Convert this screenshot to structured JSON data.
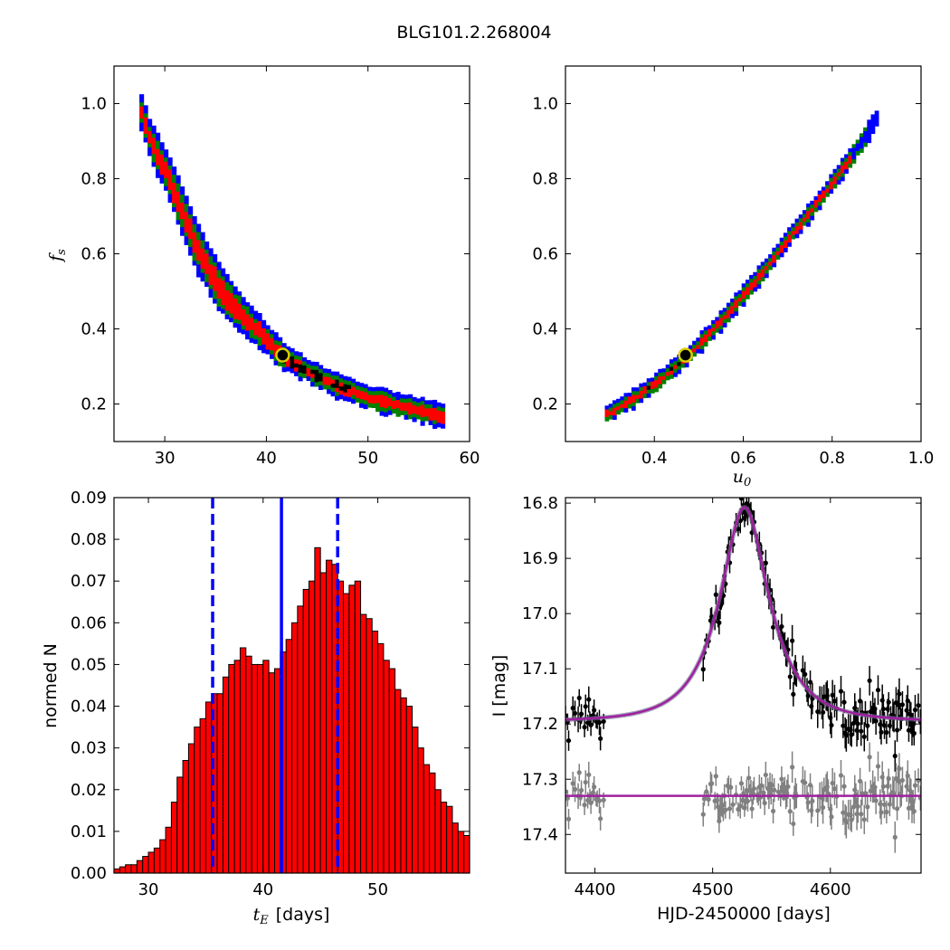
{
  "title": "BLG101.2.268004",
  "chart_data": [
    {
      "id": "te_fs",
      "type": "heatmap",
      "xlabel": "",
      "ylabel_base": "f",
      "ylabel_sub": "s",
      "xlim": [
        25,
        60
      ],
      "ylim": [
        0.1,
        1.1
      ],
      "xticks": [
        "30",
        "40",
        "50",
        "60"
      ],
      "yticks": [
        "0.2",
        "0.4",
        "0.6",
        "0.8",
        "1.0"
      ],
      "confidence_levels": [
        {
          "name": "3-sigma",
          "color": "#0000ff"
        },
        {
          "name": "2-sigma",
          "color": "#008000"
        },
        {
          "name": "1-sigma",
          "color": "#ff0000"
        },
        {
          "name": "best",
          "color": "#000000"
        }
      ],
      "ridge": [
        [
          27.5,
          0.98
        ],
        [
          28.5,
          0.9
        ],
        [
          30,
          0.82
        ],
        [
          31.5,
          0.72
        ],
        [
          33,
          0.62
        ],
        [
          35,
          0.52
        ],
        [
          37,
          0.45
        ],
        [
          39,
          0.4
        ],
        [
          41.5,
          0.33
        ],
        [
          44,
          0.29
        ],
        [
          47,
          0.25
        ],
        [
          50,
          0.22
        ],
        [
          53,
          0.2
        ],
        [
          57.5,
          0.17
        ]
      ],
      "best_fit": {
        "x": 41.6,
        "y": 0.33
      }
    },
    {
      "id": "u0_fs",
      "type": "heatmap",
      "xlabel_base": "u",
      "xlabel_sub": "0",
      "ylabel": "",
      "xlim": [
        0.2,
        1.0
      ],
      "ylim": [
        0.1,
        1.1
      ],
      "xticks": [
        "0.4",
        "0.6",
        "0.8",
        "1.0"
      ],
      "yticks": [
        "0.2",
        "0.4",
        "0.6",
        "0.8",
        "1.0"
      ],
      "ridge": [
        [
          0.28,
          0.17
        ],
        [
          0.35,
          0.22
        ],
        [
          0.4,
          0.26
        ],
        [
          0.47,
          0.33
        ],
        [
          0.55,
          0.43
        ],
        [
          0.6,
          0.5
        ],
        [
          0.65,
          0.57
        ],
        [
          0.7,
          0.65
        ],
        [
          0.75,
          0.72
        ],
        [
          0.8,
          0.8
        ],
        [
          0.85,
          0.88
        ],
        [
          0.9,
          0.97
        ]
      ],
      "best_fit": {
        "x": 0.47,
        "y": 0.33
      }
    },
    {
      "id": "te_hist",
      "type": "bar",
      "xlabel_sym_base": "t",
      "xlabel_sym_sub": "E",
      "xlabel_unit": "[days]",
      "ylabel": "normed N",
      "xlim": [
        27,
        58
      ],
      "ylim": [
        0,
        0.09
      ],
      "xticks": [
        "30",
        "40",
        "50"
      ],
      "yticks": [
        "0.00",
        "0.01",
        "0.02",
        "0.03",
        "0.04",
        "0.05",
        "0.06",
        "0.07",
        "0.08",
        "0.09"
      ],
      "bin_start": 27,
      "bin_width": 0.5,
      "values": [
        0.001,
        0.0015,
        0.002,
        0.002,
        0.003,
        0.004,
        0.005,
        0.006,
        0.008,
        0.011,
        0.017,
        0.023,
        0.027,
        0.031,
        0.035,
        0.037,
        0.041,
        0.043,
        0.043,
        0.047,
        0.05,
        0.051,
        0.054,
        0.052,
        0.05,
        0.05,
        0.051,
        0.048,
        0.049,
        0.053,
        0.056,
        0.06,
        0.064,
        0.068,
        0.07,
        0.078,
        0.072,
        0.075,
        0.074,
        0.07,
        0.067,
        0.069,
        0.07,
        0.062,
        0.061,
        0.058,
        0.055,
        0.051,
        0.049,
        0.044,
        0.042,
        0.04,
        0.035,
        0.03,
        0.026,
        0.024,
        0.02,
        0.017,
        0.016,
        0.012,
        0.01,
        0.009,
        0.008,
        0.007,
        0.006,
        0.005,
        0.0045,
        0.004,
        0.003,
        0.002,
        0.001,
        0.001
      ],
      "median": 41.6,
      "lower": 35.6,
      "upper": 46.5,
      "bar_color": "#ff0000",
      "line_color": "#0000ff"
    },
    {
      "id": "lightcurve",
      "type": "scatter",
      "xlabel": "HJD-2450000 [days]",
      "ylabel": "I [mag]",
      "xlim": [
        4375,
        4677
      ],
      "ylim": [
        17.47,
        16.79
      ],
      "xticks": [
        "4400",
        "4500",
        "4600"
      ],
      "yticks": [
        "16.8",
        "16.9",
        "17.0",
        "17.1",
        "17.2",
        "17.3",
        "17.4"
      ],
      "model": {
        "t0": 4527,
        "tE": 41.6,
        "u0": 0.47,
        "fs": 0.33,
        "I_base": 17.195,
        "color": "#a020a0"
      },
      "residual_offset": 17.33,
      "data_color": "#000000",
      "residual_color": "#808080"
    }
  ]
}
